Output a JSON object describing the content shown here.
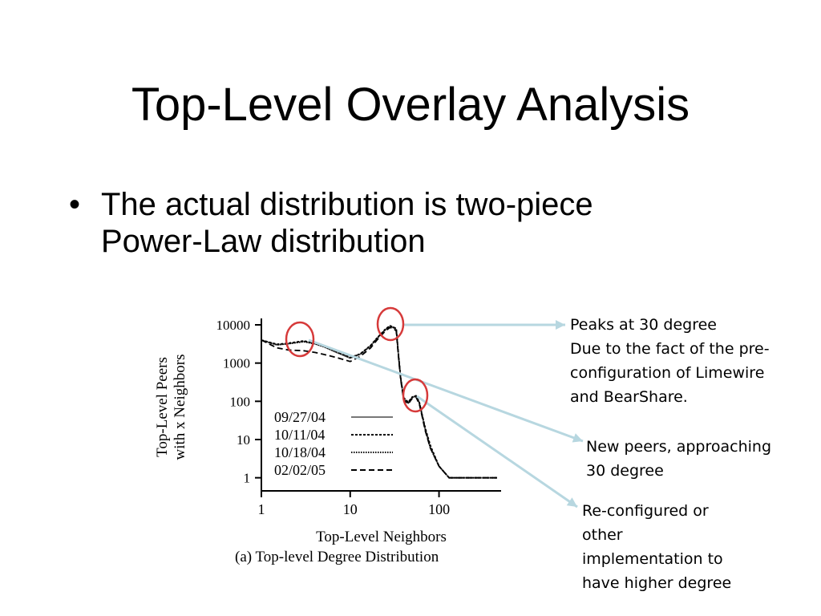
{
  "slide": {
    "title": "Top-Level Overlay Analysis",
    "bullets": [
      {
        "lines": [
          "The actual distribution is two-piece",
          "Power-Law distribution"
        ]
      }
    ]
  },
  "annotations": [
    {
      "id": "peaks",
      "lines": [
        "Peaks at 30 degree",
        "Due to the fact of the pre-",
        "configuration of Limewire",
        "and BearShare."
      ]
    },
    {
      "id": "new-peers",
      "lines": [
        "New peers, approaching",
        "30 degree"
      ]
    },
    {
      "id": "reconfigured",
      "lines": [
        "Re-configured or",
        "other",
        "implementation to",
        "have higher degree"
      ]
    }
  ],
  "colors": {
    "arrow": "#b7d7e0",
    "circle": "#d63a3a",
    "text": "#000000"
  },
  "chart_data": {
    "type": "line",
    "title": "",
    "caption": "(a)  Top-level Degree Distribution",
    "xlabel": "Top-Level Neighbors",
    "ylabel_lines": [
      "Top-Level Peers",
      "with x Neighbors"
    ],
    "xscale": "log",
    "yscale": "log",
    "xlim": [
      1,
      500
    ],
    "ylim": [
      0.5,
      10000
    ],
    "x_ticks": [
      1,
      10,
      100
    ],
    "x_tick_labels": [
      "1",
      "10",
      "100"
    ],
    "y_ticks": [
      1,
      10,
      100,
      1000,
      10000
    ],
    "y_tick_labels": [
      "1",
      "10",
      "100",
      "1000",
      "10000"
    ],
    "legend_position": "bottom-left",
    "series": [
      {
        "name": "09/27/04",
        "style": "solid",
        "x": [
          1,
          1.5,
          2,
          3,
          4,
          5,
          7,
          10,
          13,
          17,
          20,
          25,
          28,
          30,
          33,
          35,
          37,
          40,
          45,
          50,
          55,
          60,
          65,
          70,
          80,
          100,
          130,
          200,
          300,
          450
        ],
        "y": [
          4000,
          3000,
          3200,
          3700,
          3200,
          2700,
          1900,
          1350,
          1700,
          2800,
          4400,
          7500,
          9000,
          8600,
          7500,
          1500,
          400,
          120,
          90,
          125,
          135,
          90,
          40,
          18,
          6,
          2,
          1,
          1,
          1,
          1
        ]
      },
      {
        "name": "10/11/04",
        "style": "dashed",
        "x": [
          1,
          1.5,
          2,
          3,
          4,
          5,
          7,
          10,
          13,
          17,
          20,
          25,
          28,
          30,
          33,
          35,
          37,
          40,
          45,
          50,
          55,
          60,
          65,
          70,
          80,
          100,
          130,
          200,
          300,
          450
        ],
        "y": [
          4000,
          3100,
          3300,
          3800,
          3300,
          2800,
          2000,
          1400,
          1750,
          2900,
          4500,
          7800,
          9500,
          9000,
          8000,
          1600,
          420,
          125,
          95,
          130,
          140,
          95,
          42,
          20,
          7,
          2,
          1,
          1,
          1,
          1
        ]
      },
      {
        "name": "10/18/04",
        "style": "dotted",
        "x": [
          1,
          1.5,
          2,
          3,
          4,
          5,
          7,
          10,
          13,
          17,
          20,
          25,
          28,
          30,
          33,
          35,
          37,
          40,
          45,
          50,
          55,
          60,
          65,
          70,
          80,
          100,
          130,
          200,
          300,
          450
        ],
        "y": [
          3900,
          3000,
          3200,
          3600,
          3200,
          2700,
          1950,
          1380,
          1720,
          2850,
          4400,
          7600,
          9200,
          8800,
          7800,
          1550,
          410,
          118,
          92,
          128,
          138,
          92,
          41,
          19,
          6,
          2,
          1,
          1,
          1,
          1
        ]
      },
      {
        "name": "02/02/05",
        "style": "long-dash",
        "x": [
          1,
          1.5,
          2,
          3,
          4,
          5,
          7,
          10,
          13,
          17,
          20,
          25,
          28,
          30,
          33,
          35,
          37,
          40,
          45,
          50,
          55,
          60,
          65,
          70,
          80,
          100,
          130,
          200,
          300,
          450
        ],
        "y": [
          4000,
          2500,
          2200,
          2100,
          1900,
          1700,
          1400,
          1100,
          1500,
          2500,
          4000,
          7000,
          8500,
          8200,
          7000,
          1400,
          380,
          110,
          85,
          120,
          130,
          85,
          38,
          17,
          6,
          2,
          1,
          1,
          1,
          1
        ]
      }
    ]
  }
}
